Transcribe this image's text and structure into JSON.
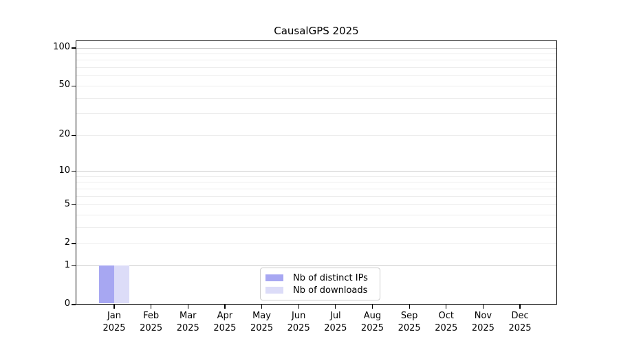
{
  "chart_data": {
    "type": "bar",
    "title": "CausalGPS 2025",
    "x_categories": [
      "Jan",
      "Feb",
      "Mar",
      "Apr",
      "May",
      "Jun",
      "Jul",
      "Aug",
      "Sep",
      "Oct",
      "Nov",
      "Dec"
    ],
    "x_year": "2025",
    "series": [
      {
        "name": "Nb of distinct IPs",
        "color": "#a7a7f2",
        "values": [
          1,
          0,
          0,
          0,
          0,
          0,
          0,
          0,
          0,
          0,
          0,
          0
        ]
      },
      {
        "name": "Nb of downloads",
        "color": "#dcdcf8",
        "values": [
          1,
          0,
          0,
          0,
          0,
          0,
          0,
          0,
          0,
          0,
          0,
          0
        ]
      }
    ],
    "y_ticks": [
      0,
      1,
      2,
      5,
      10,
      20,
      50,
      100
    ],
    "y_scale": "log10(v+1)",
    "ylim": [
      0,
      100
    ],
    "grid": {
      "major": [
        1,
        10,
        100
      ],
      "minor": [
        2,
        3,
        4,
        5,
        6,
        7,
        8,
        9,
        20,
        30,
        40,
        50,
        60,
        70,
        80,
        90
      ],
      "major_color": "#c9c9c9",
      "minor_color": "#ededed"
    },
    "legend": {
      "position": "bottom-center",
      "entries": [
        "Nb of distinct IPs",
        "Nb of downloads"
      ]
    }
  }
}
